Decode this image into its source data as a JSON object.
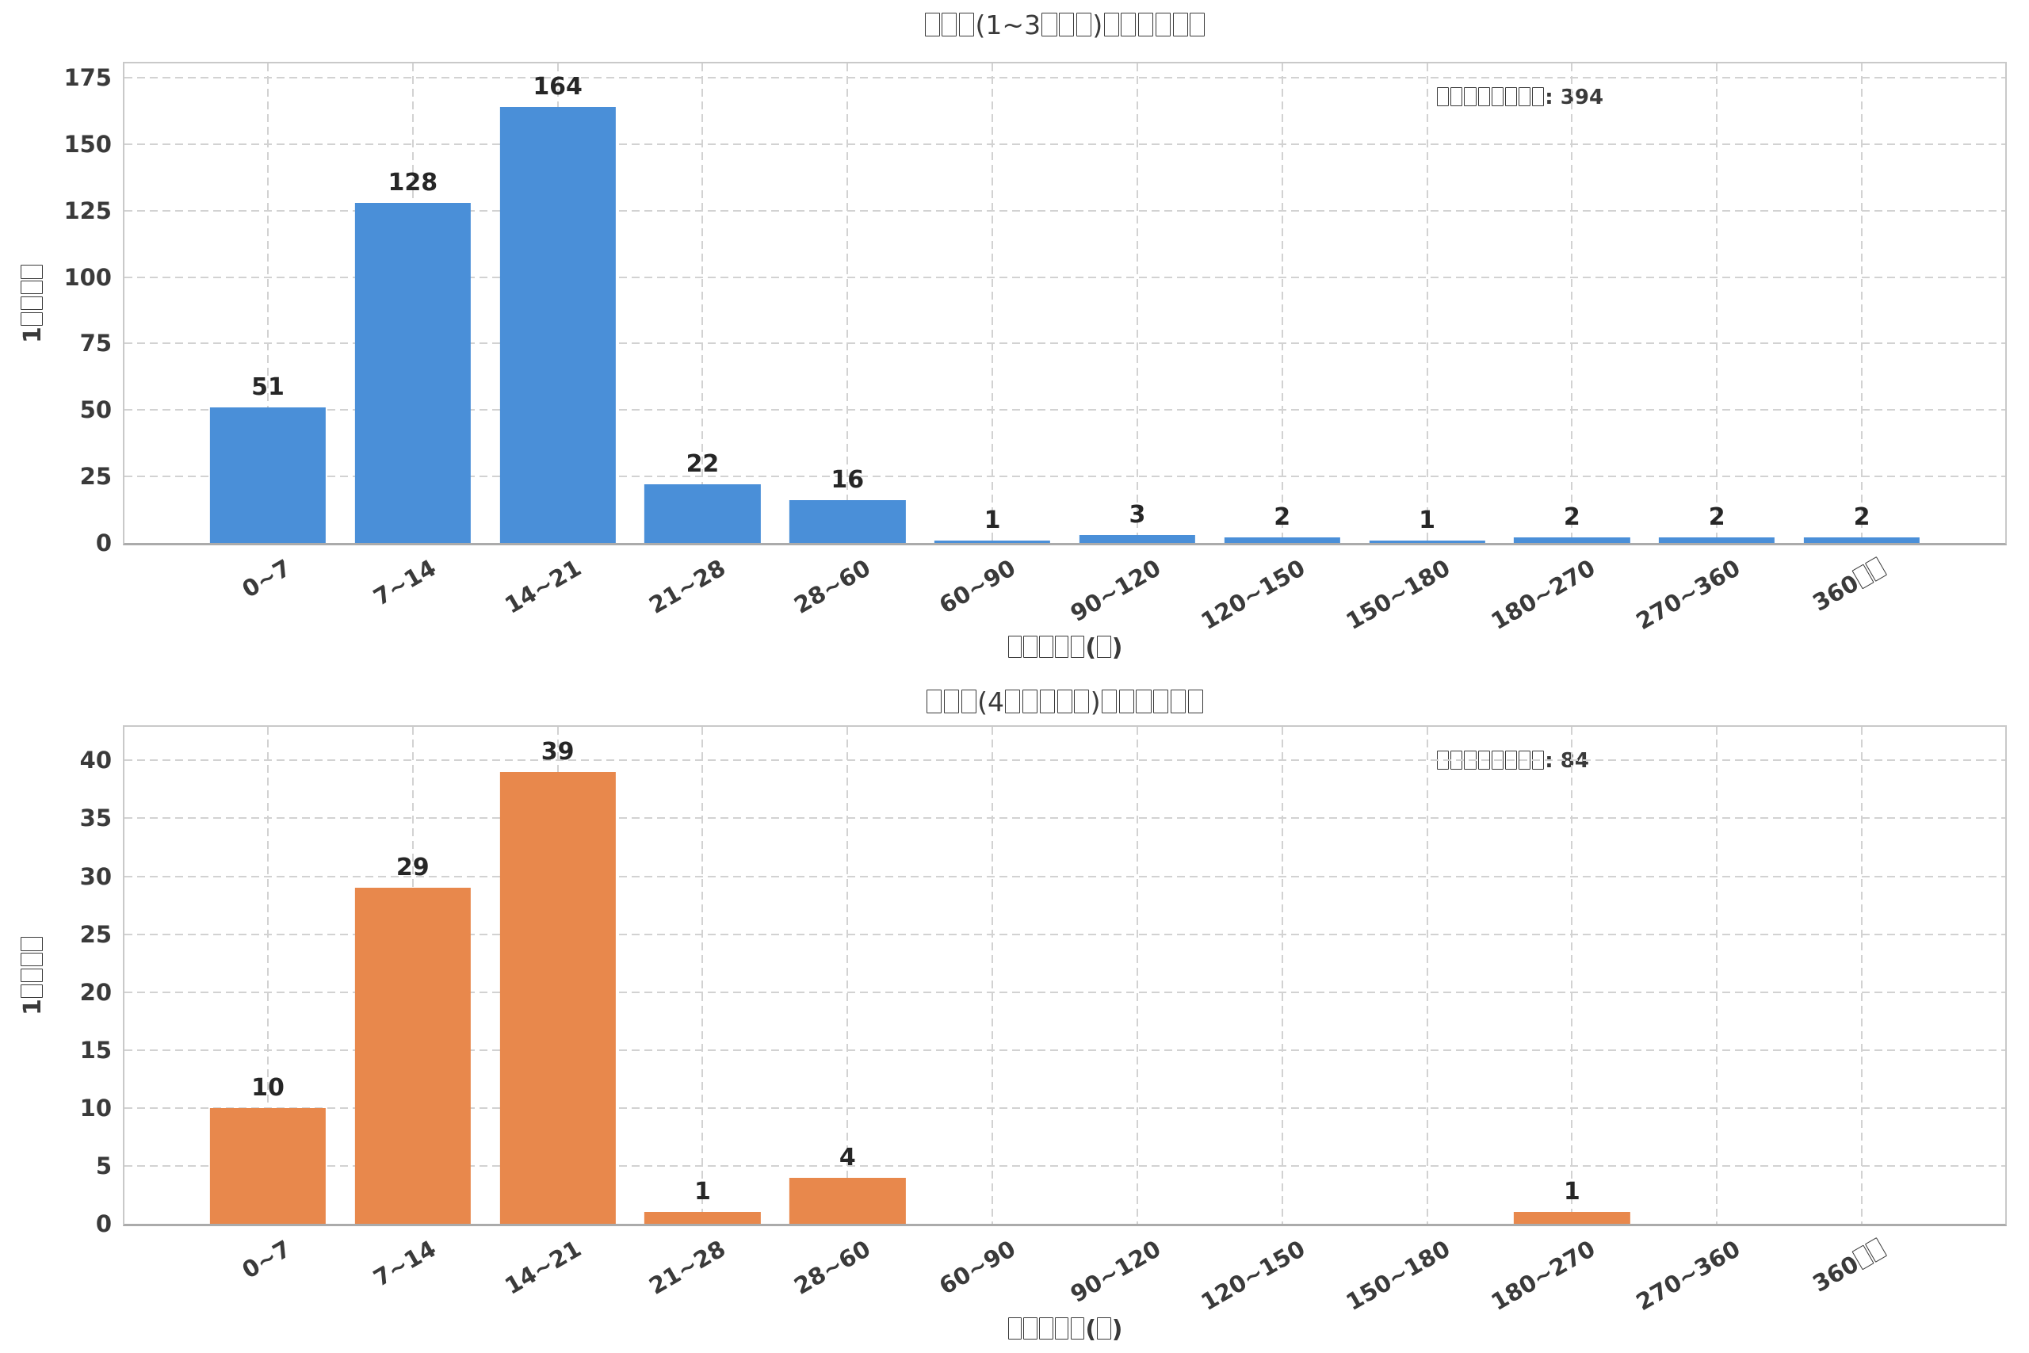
{
  "chart_data": [
    {
      "type": "bar",
      "title": "□□□(1~3□□□)□□□□□□",
      "annotation": "□□□□□□□□: 394",
      "xlabel": "□□□□□(□)",
      "ylabel": "1□□□□",
      "bar_color": "#4a8fd8",
      "categories": [
        "0~7",
        "7~14",
        "14~21",
        "21~28",
        "28~60",
        "60~90",
        "90~120",
        "120~150",
        "150~180",
        "180~270",
        "270~360",
        "360□□"
      ],
      "values": [
        51,
        128,
        164,
        22,
        16,
        1,
        3,
        2,
        1,
        2,
        2,
        2
      ],
      "yticks": [
        0,
        25,
        50,
        75,
        100,
        125,
        150,
        175
      ],
      "ylim": [
        0,
        180.4
      ],
      "grid": "dashed",
      "legend": "none",
      "note": "CJK text drawn as missing-glyph boxes in source image"
    },
    {
      "type": "bar",
      "title": "□□□(4□□□□□)□□□□□□",
      "annotation": "□□□□□□□□: 84",
      "xlabel": "□□□□□(□)",
      "ylabel": "1□□□□",
      "bar_color": "#e8884c",
      "categories": [
        "0~7",
        "7~14",
        "14~21",
        "21~28",
        "28~60",
        "60~90",
        "90~120",
        "120~150",
        "150~180",
        "180~270",
        "270~360",
        "360□□"
      ],
      "values": [
        10,
        29,
        39,
        1,
        4,
        0,
        0,
        0,
        0,
        1,
        0,
        0
      ],
      "yticks": [
        0,
        5,
        10,
        15,
        20,
        25,
        30,
        35,
        40
      ],
      "ylim": [
        0,
        42.9
      ],
      "grid": "dashed",
      "legend": "none",
      "note": "CJK text drawn as missing-glyph boxes in source image"
    }
  ]
}
